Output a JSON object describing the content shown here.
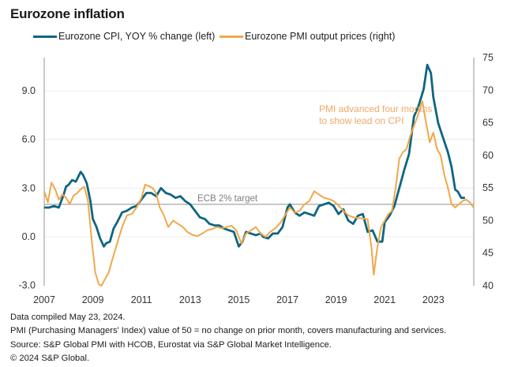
{
  "chart_data": {
    "type": "line",
    "title": "Eurozone inflation",
    "xlabel": "",
    "ylabel_left": "",
    "ylabel_right": "",
    "x_range": [
      2007,
      2024.7
    ],
    "x_ticks": [
      "2007",
      "2009",
      "2011",
      "2013",
      "2015",
      "2017",
      "2019",
      "2021",
      "2023"
    ],
    "y_left": {
      "range": [
        -3.0,
        11.0
      ],
      "ticks": [
        "-3.0",
        "0.0",
        "3.0",
        "6.0",
        "9.0"
      ],
      "tick_values": [
        -3,
        0,
        3,
        6,
        9
      ]
    },
    "y_right": {
      "range": [
        40,
        75
      ],
      "ticks": [
        "40",
        "45",
        "50",
        "55",
        "60",
        "65",
        "70",
        "75"
      ],
      "tick_values": [
        40,
        45,
        50,
        55,
        60,
        65,
        70,
        75
      ]
    },
    "grid": true,
    "legend_position": "top",
    "reference_line": {
      "axis": "left",
      "value": 2.0,
      "label": "ECB 2% target"
    },
    "annotation": {
      "text_lines": [
        "PMI advanced four months",
        "to show lead on CPI"
      ],
      "color": "#F0A868"
    },
    "series": [
      {
        "name": "Eurozone CPI, YOY % change (left)",
        "axis": "left",
        "color": "#0E6680",
        "x": [
          2007.0,
          2007.2,
          2007.4,
          2007.6,
          2007.8,
          2007.9,
          2008.0,
          2008.15,
          2008.3,
          2008.4,
          2008.5,
          2008.6,
          2008.75,
          2008.9,
          2009.0,
          2009.15,
          2009.3,
          2009.45,
          2009.55,
          2009.7,
          2009.85,
          2010.0,
          2010.2,
          2010.4,
          2010.6,
          2010.8,
          2011.0,
          2011.2,
          2011.4,
          2011.6,
          2011.8,
          2012.0,
          2012.2,
          2012.4,
          2012.6,
          2012.8,
          2013.0,
          2013.2,
          2013.4,
          2013.6,
          2013.8,
          2014.0,
          2014.2,
          2014.4,
          2014.6,
          2014.8,
          2015.0,
          2015.15,
          2015.3,
          2015.5,
          2015.7,
          2015.9,
          2016.0,
          2016.2,
          2016.4,
          2016.6,
          2016.8,
          2017.0,
          2017.1,
          2017.3,
          2017.5,
          2017.7,
          2017.9,
          2018.1,
          2018.3,
          2018.5,
          2018.7,
          2018.9,
          2019.1,
          2019.3,
          2019.5,
          2019.7,
          2019.9,
          2020.1,
          2020.3,
          2020.5,
          2020.7,
          2020.9,
          2021.0,
          2021.2,
          2021.4,
          2021.6,
          2021.8,
          2022.0,
          2022.2,
          2022.4,
          2022.6,
          2022.75,
          2022.9,
          2023.0,
          2023.2,
          2023.4,
          2023.6,
          2023.75,
          2023.9,
          2024.0,
          2024.15,
          2024.3
        ],
        "values": [
          1.8,
          1.8,
          1.9,
          1.8,
          2.6,
          3.1,
          3.2,
          3.5,
          3.4,
          3.7,
          4.0,
          3.8,
          3.3,
          2.2,
          1.1,
          0.6,
          -0.1,
          -0.6,
          -0.4,
          -0.3,
          0.5,
          0.9,
          1.5,
          1.6,
          1.8,
          1.9,
          2.3,
          2.7,
          2.7,
          2.5,
          3.0,
          2.7,
          2.6,
          2.4,
          2.5,
          2.2,
          2.0,
          1.6,
          1.2,
          1.1,
          0.8,
          0.7,
          0.7,
          0.5,
          0.4,
          0.3,
          -0.6,
          -0.3,
          0.3,
          0.2,
          0.1,
          0.2,
          0.0,
          -0.1,
          0.2,
          0.2,
          0.6,
          1.8,
          2.0,
          1.5,
          1.3,
          1.5,
          1.4,
          1.3,
          1.9,
          2.0,
          2.1,
          1.9,
          1.4,
          1.7,
          1.0,
          0.8,
          1.3,
          1.4,
          0.3,
          0.4,
          -0.3,
          -0.3,
          0.9,
          1.3,
          1.9,
          3.0,
          4.1,
          5.1,
          7.4,
          8.1,
          9.1,
          10.6,
          10.1,
          8.6,
          7.0,
          6.1,
          5.2,
          4.3,
          2.9,
          2.8,
          2.4,
          2.4
        ]
      },
      {
        "name": "Eurozone PMI output prices (right)",
        "axis": "right",
        "color": "#F0A848",
        "x": [
          2007.0,
          2007.15,
          2007.3,
          2007.45,
          2007.6,
          2007.75,
          2007.9,
          2008.05,
          2008.2,
          2008.35,
          2008.5,
          2008.65,
          2008.8,
          2008.95,
          2009.1,
          2009.25,
          2009.35,
          2009.5,
          2009.65,
          2009.8,
          2010.0,
          2010.2,
          2010.4,
          2010.6,
          2010.8,
          2011.0,
          2011.15,
          2011.3,
          2011.45,
          2011.6,
          2011.75,
          2011.9,
          2012.1,
          2012.3,
          2012.5,
          2012.7,
          2012.9,
          2013.1,
          2013.3,
          2013.5,
          2013.7,
          2013.9,
          2014.1,
          2014.3,
          2014.5,
          2014.7,
          2014.9,
          2015.1,
          2015.3,
          2015.5,
          2015.7,
          2015.9,
          2016.1,
          2016.3,
          2016.5,
          2016.7,
          2016.9,
          2017.1,
          2017.3,
          2017.5,
          2017.7,
          2017.9,
          2018.1,
          2018.3,
          2018.5,
          2018.7,
          2018.9,
          2019.1,
          2019.3,
          2019.5,
          2019.7,
          2019.9,
          2020.1,
          2020.3,
          2020.45,
          2020.55,
          2020.7,
          2020.85,
          2021.0,
          2021.15,
          2021.3,
          2021.45,
          2021.6,
          2021.75,
          2021.9,
          2022.05,
          2022.2,
          2022.35,
          2022.55,
          2022.7,
          2022.85,
          2023.0,
          2023.15,
          2023.3,
          2023.45,
          2023.6,
          2023.75,
          2023.9,
          2024.05,
          2024.2,
          2024.35,
          2024.5,
          2024.65
        ],
        "values": [
          54.5,
          52.8,
          55.8,
          54.8,
          53.2,
          54.0,
          53.5,
          52.5,
          53.8,
          54.2,
          54.8,
          55.2,
          53.0,
          47.0,
          42.0,
          40.2,
          40.0,
          41.0,
          42.0,
          44.0,
          46.5,
          49.0,
          50.8,
          51.0,
          52.0,
          53.5,
          55.5,
          55.3,
          55.0,
          54.2,
          52.0,
          51.0,
          49.0,
          50.0,
          49.5,
          49.0,
          48.2,
          47.8,
          47.6,
          48.0,
          48.5,
          48.7,
          49.0,
          48.8,
          49.0,
          49.2,
          48.5,
          46.5,
          48.0,
          48.5,
          49.0,
          48.0,
          47.5,
          48.3,
          48.8,
          49.6,
          50.8,
          52.0,
          51.2,
          51.5,
          52.5,
          53.0,
          54.5,
          54.0,
          53.5,
          53.3,
          53.0,
          52.3,
          51.5,
          50.8,
          50.5,
          50.4,
          50.3,
          50.2,
          46.0,
          41.7,
          46.0,
          49.0,
          50.0,
          51.0,
          51.5,
          55.0,
          59.5,
          60.5,
          61.0,
          63.0,
          64.5,
          66.0,
          68.3,
          65.0,
          62.0,
          63.5,
          61.0,
          60.0,
          57.0,
          55.0,
          52.5,
          52.0,
          52.5,
          53.0,
          53.2,
          52.8,
          52.0
        ]
      }
    ]
  },
  "notes": [
    "Data compiled May 23, 2024.",
    "PMI (Purchasing Managers' Index) value of 50 = no change on prior month, covers manufacturing and services.",
    "Source: S&P Global PMI with HCOB, Eurostat via S&P Global Market Intelligence.",
    "© 2024 S&P Global."
  ]
}
